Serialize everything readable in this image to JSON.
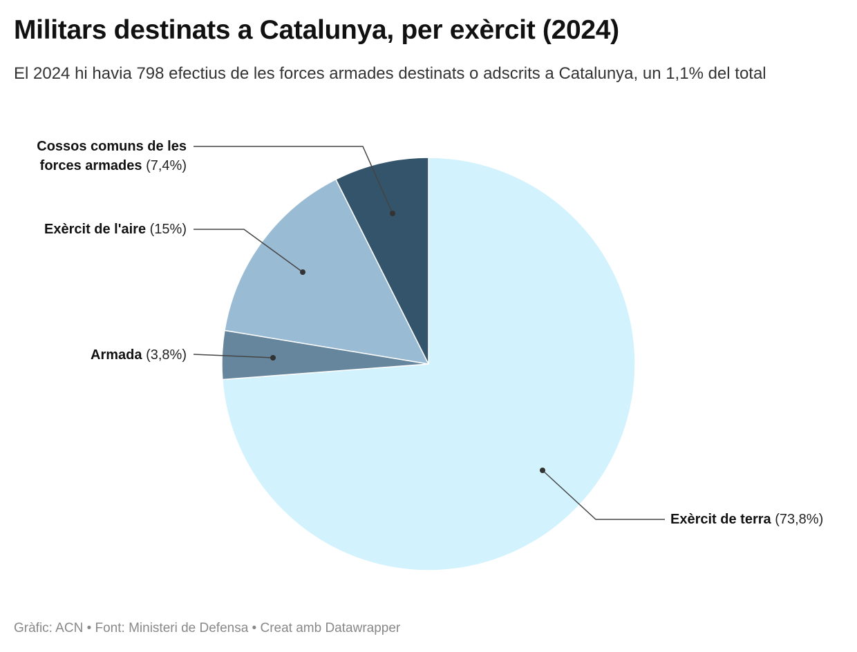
{
  "header": {
    "title": "Militars destinats a Catalunya, per exèrcit (2024)",
    "subtitle": "El 2024 hi havia 798 efectius de les forces armades destinats o adscrits a Catalunya, un 1,1% del total"
  },
  "footer": {
    "text": "Gràfic: ACN • Font: Ministeri de Defensa • Creat amb Datawrapper"
  },
  "chart_data": {
    "type": "pie",
    "start": "top, clockwise",
    "slices": [
      {
        "name": "Exèrcit de terra",
        "value": 73.8,
        "label_value": "(73,8%)",
        "color": "#d2f2fe"
      },
      {
        "name": "Armada",
        "value": 3.8,
        "label_value": "(3,8%)",
        "color": "#66869e"
      },
      {
        "name": "Exèrcit de l'aire",
        "value": 15,
        "label_value": "(15%)",
        "color": "#9abbd4"
      },
      {
        "name": "Cossos comuns de les forces armades",
        "name_lines": [
          "Cossos comuns de les",
          "forces armades"
        ],
        "value": 7.4,
        "label_value": "(7,4%)",
        "color": "#33546a"
      }
    ]
  }
}
